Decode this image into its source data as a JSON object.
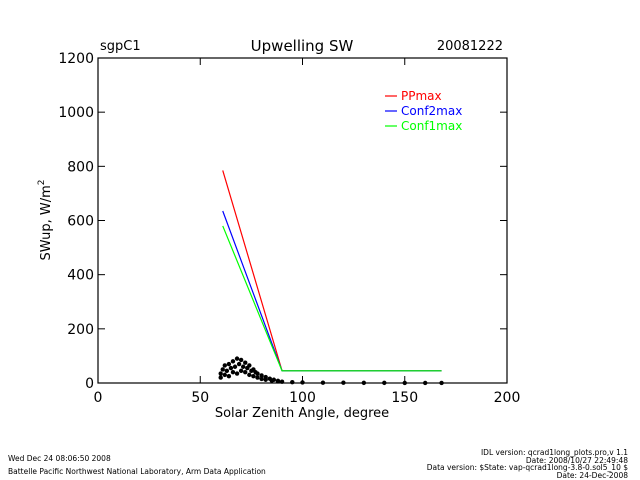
{
  "header": {
    "site": "sgpC1",
    "title": "Upwelling SW",
    "date": "20081222"
  },
  "footer": {
    "timestamp": "Wed Dec 24 08:06:50 2008",
    "lab": "Battelle Pacific Northwest National Laboratory, Arm Data Application",
    "idl_version": "IDL version: qcrad1long_plots.pro,v 1.1",
    "run_date": "Date: 2008/10/27 22:49:48",
    "data_version": "Data version: $State: vap-qcrad1long-3.8-0.sol5_10 $",
    "data_date": "Date: 24-Dec-2008"
  },
  "chart_data": {
    "type": "line",
    "xlabel": "Solar Zenith Angle, degree",
    "ylabel": "SWup, W/m",
    "ylabel_superscript": "2",
    "xlim": [
      0,
      200
    ],
    "ylim": [
      0,
      1200
    ],
    "xticks": [
      0,
      50,
      100,
      150,
      200
    ],
    "yticks": [
      0,
      200,
      400,
      600,
      800,
      1000,
      1200
    ],
    "legend_position": "top-right",
    "series": [
      {
        "name": "PPmax",
        "color": "#ff0000",
        "x": [
          61,
          90,
          168
        ],
        "y": [
          785,
          45,
          45
        ]
      },
      {
        "name": "Conf2max",
        "color": "#0000ff",
        "x": [
          61,
          90,
          168
        ],
        "y": [
          635,
          45,
          45
        ]
      },
      {
        "name": "Conf1max",
        "color": "#00ff00",
        "x": [
          61,
          90,
          168
        ],
        "y": [
          580,
          45,
          45
        ]
      }
    ],
    "observed": {
      "color": "#000000",
      "points": [
        [
          60,
          35
        ],
        [
          61,
          50
        ],
        [
          62,
          65
        ],
        [
          63,
          45
        ],
        [
          64,
          70
        ],
        [
          65,
          55
        ],
        [
          66,
          80
        ],
        [
          67,
          60
        ],
        [
          68,
          90
        ],
        [
          69,
          70
        ],
        [
          70,
          85
        ],
        [
          71,
          60
        ],
        [
          72,
          75
        ],
        [
          73,
          55
        ],
        [
          74,
          65
        ],
        [
          75,
          45
        ],
        [
          76,
          50
        ],
        [
          77,
          40
        ],
        [
          78,
          35
        ],
        [
          80,
          28
        ],
        [
          82,
          22
        ],
        [
          84,
          16
        ],
        [
          86,
          12
        ],
        [
          88,
          8
        ],
        [
          90,
          5
        ],
        [
          95,
          3
        ],
        [
          100,
          2
        ],
        [
          110,
          1
        ],
        [
          120,
          1
        ],
        [
          130,
          0.5
        ],
        [
          140,
          0.5
        ],
        [
          150,
          0.3
        ],
        [
          160,
          0.3
        ],
        [
          168,
          0.2
        ],
        [
          60,
          20
        ],
        [
          62,
          30
        ],
        [
          64,
          25
        ],
        [
          66,
          40
        ],
        [
          68,
          35
        ],
        [
          70,
          45
        ],
        [
          72,
          40
        ],
        [
          74,
          30
        ],
        [
          76,
          25
        ],
        [
          78,
          20
        ],
        [
          80,
          15
        ],
        [
          82,
          12
        ],
        [
          85,
          9
        ],
        [
          88,
          6
        ]
      ]
    }
  }
}
